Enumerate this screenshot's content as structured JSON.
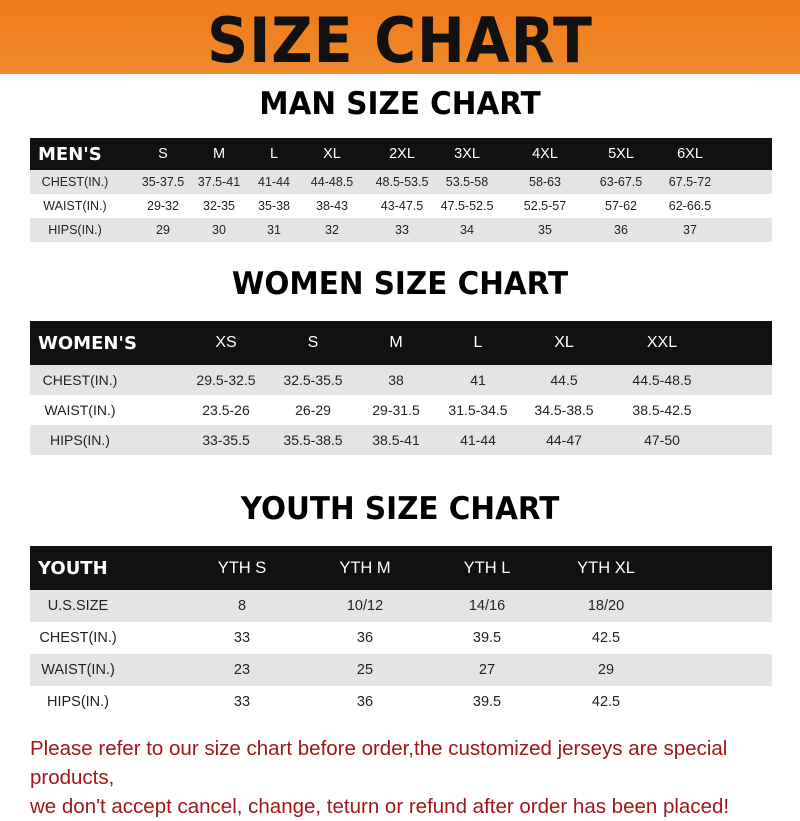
{
  "banner": {
    "title": "SIZE CHART",
    "color": "#f07a1a"
  },
  "tables": [
    {
      "title": "MAN SIZE CHART",
      "header": [
        "MEN'S",
        "S",
        "M",
        "L",
        "XL",
        "2XL",
        "3XL",
        "4XL",
        "5XL",
        "6XL"
      ],
      "rows": [
        [
          "CHEST(IN.)",
          "35-37.5",
          "37.5-41",
          "41-44",
          "44-48.5",
          "48.5-53.5",
          "53.5-58",
          "58-63",
          "63-67.5",
          "67.5-72"
        ],
        [
          "WAIST(IN.)",
          "29-32",
          "32-35",
          "35-38",
          "38-43",
          "43-47.5",
          "47.5-52.5",
          "52.5-57",
          "57-62",
          "62-66.5"
        ],
        [
          "HIPS(IN.)",
          "29",
          "30",
          "31",
          "32",
          "33",
          "34",
          "35",
          "36",
          "37"
        ]
      ]
    },
    {
      "title": "WOMEN SIZE CHART",
      "header": [
        "WOMEN'S",
        "XS",
        "S",
        "M",
        "L",
        "XL",
        "XXL"
      ],
      "rows": [
        [
          "CHEST(IN.)",
          "29.5-32.5",
          "32.5-35.5",
          "38",
          "41",
          "44.5",
          "44.5-48.5"
        ],
        [
          "WAIST(IN.)",
          "23.5-26",
          "26-29",
          "29-31.5",
          "31.5-34.5",
          "34.5-38.5",
          "38.5-42.5"
        ],
        [
          "HIPS(IN.)",
          "33-35.5",
          "35.5-38.5",
          "38.5-41",
          "41-44",
          "44-47",
          "47-50"
        ]
      ]
    },
    {
      "title": "YOUTH SIZE CHART",
      "header": [
        "YOUTH",
        "YTH S",
        "YTH M",
        "YTH L",
        "YTH XL"
      ],
      "rows": [
        [
          "U.S.SIZE",
          "8",
          "10/12",
          "14/16",
          "18/20"
        ],
        [
          "CHEST(IN.)",
          "33",
          "36",
          "39.5",
          "42.5"
        ],
        [
          "WAIST(IN.)",
          "23",
          "25",
          "27",
          "29"
        ],
        [
          "HIPS(IN.)",
          "33",
          "36",
          "39.5",
          "42.5"
        ]
      ]
    }
  ],
  "footer": {
    "line1": "Please refer to our size chart before order,the customized jerseys are special products,",
    "line2": "we don't accept cancel, change, teturn or refund after order has been placed!",
    "color": "#a01818"
  }
}
